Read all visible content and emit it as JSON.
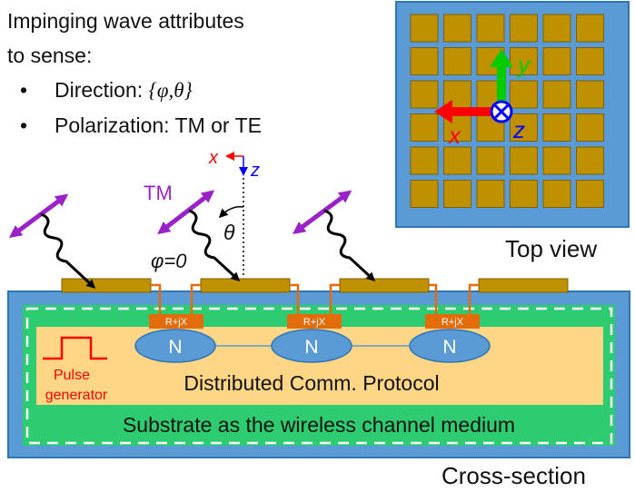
{
  "intro": {
    "line1": "Impinging wave attributes",
    "line2": "to sense:",
    "bullet_char": "•",
    "bullets": [
      {
        "label": "Direction: ",
        "value": "{φ,θ}"
      },
      {
        "label": "Polarization: TM or TE",
        "value": ""
      }
    ]
  },
  "top_view": {
    "caption": "Top view",
    "axes": {
      "x": "x",
      "y": "y",
      "z": "z"
    },
    "grid_rows": 6,
    "grid_cols": 6
  },
  "cross_section": {
    "caption": "Cross-section",
    "axes_top": {
      "x": "x",
      "z": "z"
    },
    "tm_label": "TM",
    "theta_label": "θ",
    "phi_label": "φ=0",
    "impedance_label": "R+jX",
    "node_label": "N",
    "pulse_label_1": "Pulse",
    "pulse_label_2": "generator",
    "protocol_label": "Distributed Comm. Protocol",
    "substrate_label": "Substrate as the wireless channel medium"
  },
  "colors": {
    "board_blue": "#5b9bd5",
    "board_border": "#2e75b6",
    "patch_gold": "#bf9000",
    "green": "#2ecc71",
    "yellow": "#ffd685",
    "orange": "#e36c0a",
    "red": "#ff0000",
    "purple": "#9a22c8",
    "axis_green": "#00cc00",
    "axis_blue": "#0000ff"
  }
}
